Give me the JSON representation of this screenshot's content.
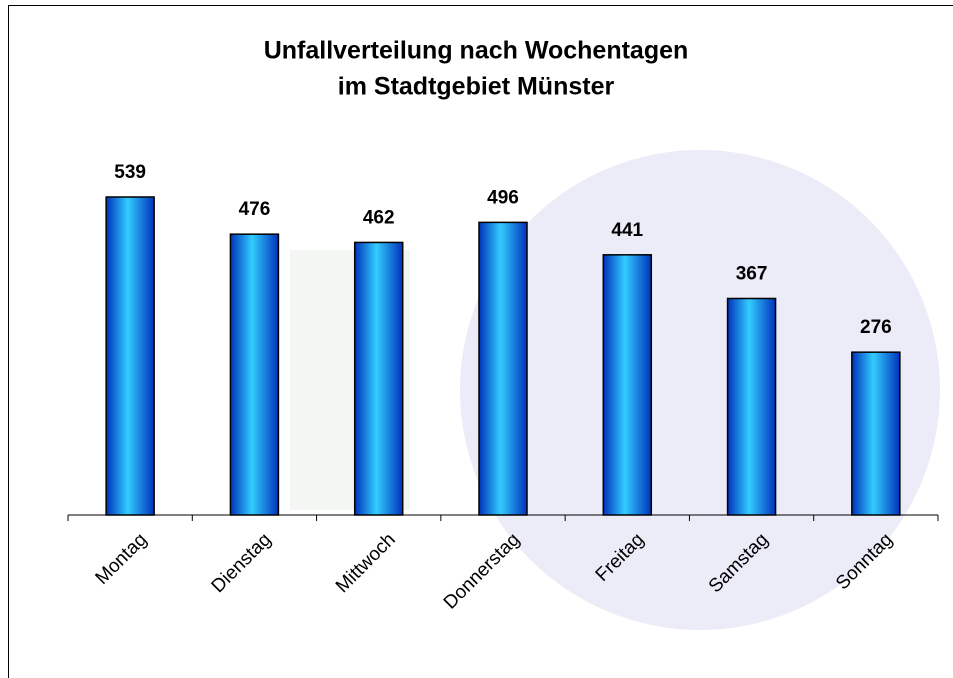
{
  "chart_data": {
    "type": "bar",
    "title": [
      "Unfallverteilung nach Wochentagen",
      "im Stadtgebiet Münster"
    ],
    "categories": [
      "Montag",
      "Dienstag",
      "Mittwoch",
      "Donnerstag",
      "Freitag",
      "Samstag",
      "Sonntag"
    ],
    "values": [
      539,
      476,
      462,
      496,
      441,
      367,
      276
    ],
    "color": "#33ccff"
  }
}
